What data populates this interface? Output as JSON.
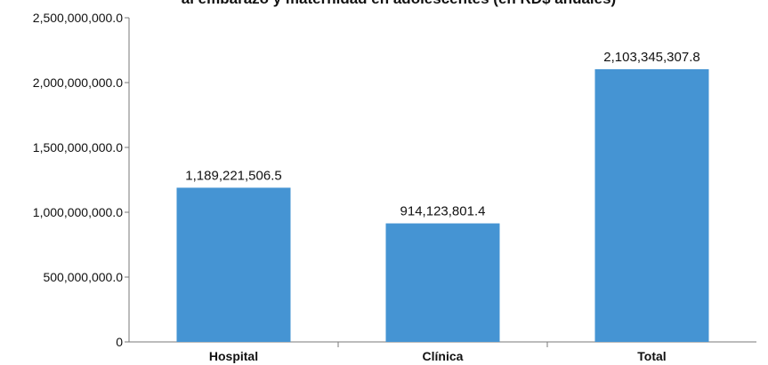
{
  "chart_data": {
    "type": "bar",
    "title": "al embarazo y maternidad en adolescentes (en RD$ anuales)",
    "xlabel": "",
    "ylabel": "",
    "categories": [
      "Hospital",
      "Clínica",
      "Total"
    ],
    "values": [
      1189221506.5,
      914123801.4,
      2103345307.8
    ],
    "value_labels": [
      "1,189,221,506.5",
      "914,123,801.4",
      "2,103,345,307.8"
    ],
    "ylim": [
      0,
      2500000000
    ],
    "y_ticks": [
      0,
      500000000,
      1000000000,
      1500000000,
      2000000000,
      2500000000
    ],
    "y_tick_labels": [
      "0",
      "500,000,000.0",
      "1,000,000,000.0",
      "1,500,000,000.0",
      "2,000,000,000.0",
      "2,500,000,000.0"
    ],
    "grid": false,
    "colors": {
      "bar": "#4594d3"
    }
  }
}
